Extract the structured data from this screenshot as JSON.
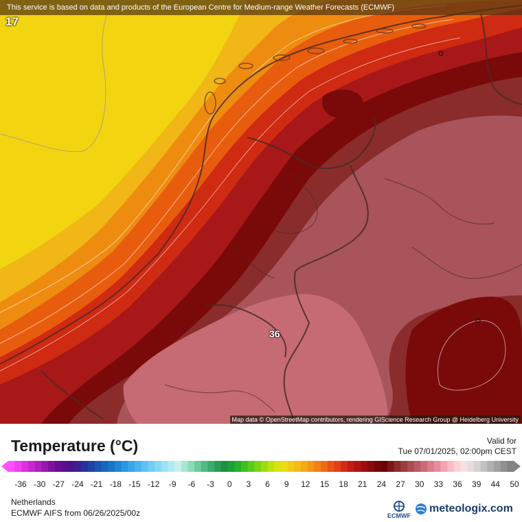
{
  "banner": {
    "text": "This service is based on data and products of the European Centre for Medium-range Weather Forecasts (ECMWF)"
  },
  "map": {
    "attribution": "Map data © OpenStreetMap contributors, rendering GIScience Research Group @ Heidelberg University",
    "labels": {
      "corner_value": "17",
      "center_value": "36"
    },
    "colors": {
      "yellow": "#f2d411",
      "yellow_orange": "#f0b716",
      "orange": "#ee8c10",
      "orange_red": "#e85d0d",
      "red": "#cf2a12",
      "crimson": "#a81818",
      "dark_red": "#7a0a0a",
      "maroon": "#8a2c2c",
      "mauve": "#a8545a",
      "pink": "#c66b73"
    }
  },
  "legend": {
    "title": "Temperature (°C)",
    "valid_label": "Valid for",
    "valid_time": "Tue 07/01/2025, 02:00pm CEST",
    "tick_labels": [
      "-36",
      "-30",
      "-27",
      "-24",
      "-21",
      "-18",
      "-15",
      "-12",
      "-9",
      "-6",
      "-3",
      "0",
      "3",
      "6",
      "9",
      "12",
      "15",
      "18",
      "21",
      "24",
      "27",
      "30",
      "33",
      "36",
      "39",
      "44",
      "50"
    ],
    "colors": [
      "#ff50ff",
      "#f040f0",
      "#e030e0",
      "#c828d0",
      "#b020c0",
      "#9818b0",
      "#8010a0",
      "#6a0c94",
      "#5a108c",
      "#4a1488",
      "#3a2090",
      "#2a3098",
      "#1f44a4",
      "#1a56b0",
      "#1666bc",
      "#1876c8",
      "#1f86d6",
      "#2a96e0",
      "#3aa6e8",
      "#4ab4ee",
      "#5cc2f2",
      "#70cef4",
      "#86d8f4",
      "#9ce2f2",
      "#b2eaf0",
      "#c6f0ec",
      "#a8e8cc",
      "#8adcb4",
      "#6ccc9c",
      "#50bc84",
      "#3aac6c",
      "#2a9c58",
      "#1e9044",
      "#1aa038",
      "#28b028",
      "#3cc020",
      "#58cc18",
      "#7ad414",
      "#9cdc10",
      "#bce210",
      "#d8e412",
      "#ecdc14",
      "#f2cc14",
      "#f4bc14",
      "#f4aa14",
      "#f49614",
      "#f28214",
      "#ee6c14",
      "#e85414",
      "#e04014",
      "#d42c14",
      "#c41c14",
      "#b01414",
      "#9c0e0e",
      "#880a0a",
      "#760606",
      "#6a0404",
      "#7a1818",
      "#8a2c2c",
      "#9a3c40",
      "#aa4c54",
      "#ba5c66",
      "#ca6c78",
      "#da7c8a",
      "#ea8c9c",
      "#f4a4b0",
      "#f8bcc4",
      "#fad2d6",
      "#f4e2e2",
      "#e6dede",
      "#d4d4d4",
      "#c2c2c2",
      "#b0b0b0",
      "#a0a0a0",
      "#909090",
      "#848484"
    ]
  },
  "footer": {
    "region": "Netherlands",
    "model": "ECMWF AIFS from  06/26/2025/00z",
    "ecmwf_logo_text": "ECMWF",
    "brand": "meteologix.com"
  }
}
